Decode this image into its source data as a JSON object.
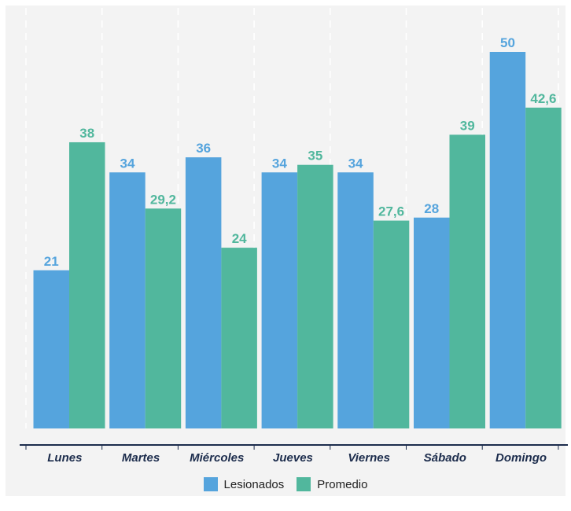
{
  "chart_data": {
    "type": "bar",
    "categories": [
      "Lunes",
      "Martes",
      "Miércoles",
      "Jueves",
      "Viernes",
      "Sábado",
      "Domingo"
    ],
    "series": [
      {
        "name": "Lesionados",
        "color": "#55a4dd",
        "values": [
          21,
          34,
          36,
          34,
          34,
          28,
          50
        ],
        "labels": [
          "21",
          "34",
          "36",
          "34",
          "34",
          "28",
          "50"
        ]
      },
      {
        "name": "Promedio",
        "color": "#51b79d",
        "values": [
          38,
          29.2,
          24,
          35,
          27.6,
          39,
          42.6
        ],
        "labels": [
          "38",
          "29,2",
          "24",
          "35",
          "27,6",
          "39",
          "42,6"
        ]
      }
    ],
    "ylim": [
      0,
      50
    ],
    "grid": "vertical dashed",
    "legend_position": "bottom"
  },
  "colors": {
    "axis": "#1c2c4c",
    "background": "#f3f3f3"
  }
}
